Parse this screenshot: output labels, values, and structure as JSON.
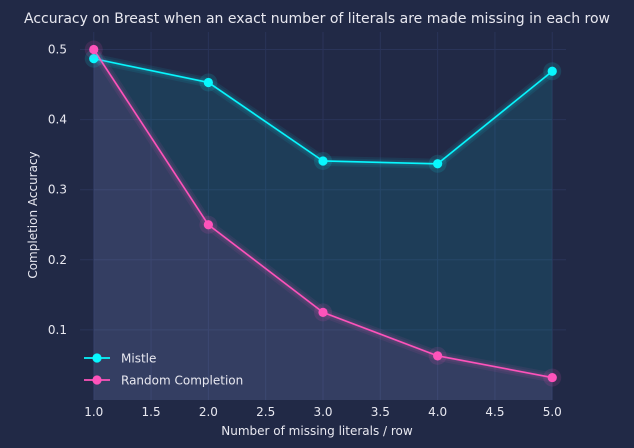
{
  "chart_data": {
    "type": "line",
    "title": "Accuracy on Breast when an exact number of literals are made missing in each row",
    "xlabel": "Number of missing literals / row",
    "ylabel": "Completion Accuracy",
    "x": [
      1.0,
      2.0,
      3.0,
      4.0,
      5.0
    ],
    "xlim": [
      0.88,
      5.12
    ],
    "ylim": [
      0.0,
      0.525
    ],
    "xticks": [
      1.0,
      1.5,
      2.0,
      2.5,
      3.0,
      3.5,
      4.0,
      4.5,
      5.0
    ],
    "xtick_labels": [
      "1.0",
      "1.5",
      "2.0",
      "2.5",
      "3.0",
      "3.5",
      "4.0",
      "4.5",
      "5.0"
    ],
    "yticks": [
      0.1,
      0.2,
      0.3,
      0.4,
      0.5
    ],
    "ytick_labels": [
      "0.1",
      "0.2",
      "0.3",
      "0.4",
      "0.5"
    ],
    "grid": true,
    "legend_position": "bottom-left",
    "series": [
      {
        "name": "Mistle",
        "values": [
          0.487,
          0.453,
          0.341,
          0.337,
          0.469
        ],
        "color": "#08F7FE"
      },
      {
        "name": "Random Completion",
        "values": [
          0.5,
          0.25,
          0.125,
          0.063,
          0.032
        ],
        "color": "#FE53BB"
      }
    ],
    "colors": {
      "background": "#212946",
      "grid": "#2A3459",
      "text": "#e8e8f0"
    }
  }
}
